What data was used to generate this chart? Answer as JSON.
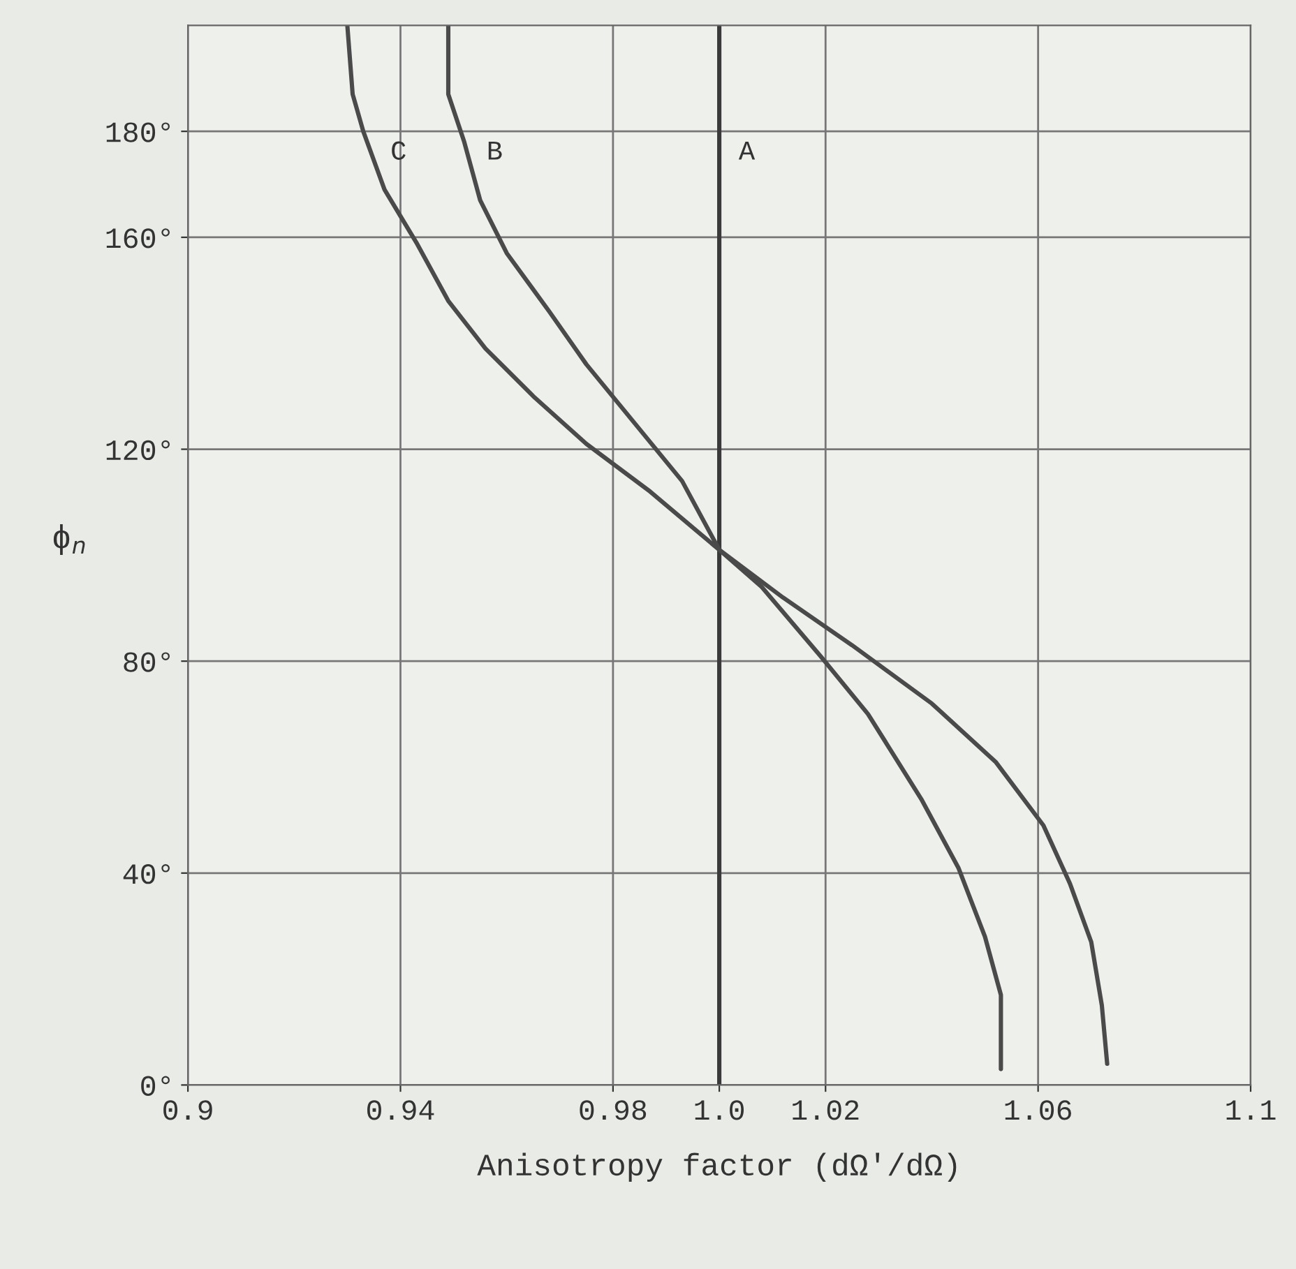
{
  "chart_data": {
    "type": "line",
    "xlabel": "Anisotropy factor (dΩ′/dΩ)",
    "ylabel": "ϕ$_{n}$",
    "xlim": [
      0.9,
      1.1
    ],
    "ylim": [
      0,
      200
    ],
    "xticks": [
      0.9,
      0.94,
      0.98,
      {
        "value": 1.0,
        "label": "1.0"
      },
      1.02,
      1.06,
      1.1
    ],
    "yticks": [
      {
        "value": 0,
        "label": "0°"
      },
      {
        "value": 40,
        "label": "40°"
      },
      {
        "value": 80,
        "label": "80°"
      },
      {
        "value": 120,
        "label": "120°"
      },
      {
        "value": 160,
        "label": "160°"
      },
      {
        "value": 180,
        "label": "180°"
      }
    ],
    "grid": true,
    "marker": "none",
    "line_style": "solid",
    "series": [
      {
        "name": "A",
        "color": "#3a3a3a",
        "x": [
          1.0,
          1.0
        ],
        "values": [
          0,
          200
        ]
      },
      {
        "name": "B",
        "color": "#4a4a4a",
        "x": [
          0.949,
          0.949,
          0.952,
          0.955,
          0.96,
          0.968,
          0.975,
          0.984,
          0.993,
          1.0,
          1.008,
          1.019,
          1.028,
          1.038,
          1.045,
          1.05,
          1.053,
          1.053
        ],
        "values": [
          200,
          187,
          178,
          167,
          157,
          146,
          136,
          125,
          114,
          101,
          94,
          81,
          70,
          54,
          41,
          28,
          17,
          3
        ]
      },
      {
        "name": "C",
        "color": "#4a4a4a",
        "x": [
          0.93,
          0.931,
          0.933,
          0.937,
          0.943,
          0.949,
          0.956,
          0.965,
          0.975,
          0.987,
          1.0,
          1.012,
          1.025,
          1.04,
          1.052,
          1.061,
          1.066,
          1.07,
          1.072,
          1.073
        ],
        "values": [
          200,
          187,
          180,
          169,
          159,
          148,
          139,
          130,
          121,
          112,
          101,
          92,
          83,
          72,
          61,
          49,
          38,
          27,
          15,
          4
        ]
      }
    ]
  }
}
